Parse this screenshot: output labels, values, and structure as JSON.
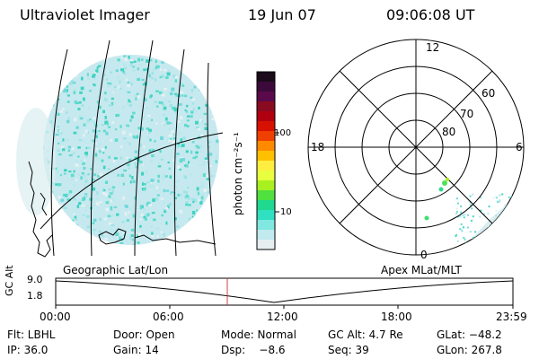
{
  "header": {
    "instrument": "Ultraviolet Imager",
    "date": "19 Jun 07",
    "time": "09:06:08 UT"
  },
  "colorbar": {
    "label": "photon cm⁻²s⁻¹",
    "ticks": [
      "100",
      "10"
    ],
    "colors": [
      "#1a0a1a",
      "#3b0a3a",
      "#5a0a4a",
      "#8a0a20",
      "#b00010",
      "#d81000",
      "#f04000",
      "#ff8a00",
      "#ffc000",
      "#ffee40",
      "#e8ff40",
      "#a8f020",
      "#50e040",
      "#20d890",
      "#30e0c0",
      "#80e8e0",
      "#c0eaee",
      "#e6eef0"
    ]
  },
  "polar": {
    "labels": {
      "top": "12",
      "bottom": "0",
      "left": "18",
      "right": "6"
    },
    "rings": [
      "60",
      "70",
      "80"
    ]
  },
  "map": {
    "label": "Geographic Lat/Lon"
  },
  "apex": {
    "label": "Apex MLat/MLT"
  },
  "timeline": {
    "ylabel": "GC Alt",
    "yticks": [
      "9.0",
      "1.8"
    ],
    "xticks": [
      "00:00",
      "06:00",
      "12:00",
      "18:00",
      "23:59"
    ]
  },
  "info": {
    "row1": {
      "filter": "Flt: LBHL",
      "door": "Door: Open",
      "mode": "Mode: Normal",
      "gc_alt": "GC Alt: 4.7 Re",
      "glat": "GLat: −48.2"
    },
    "row2": {
      "ip": "IP: 36.0",
      "gain": "Gain: 14",
      "dsp": "Dsp:    −8.6",
      "seq": "Seq: 39",
      "glon": "GLon: 267.8"
    }
  }
}
